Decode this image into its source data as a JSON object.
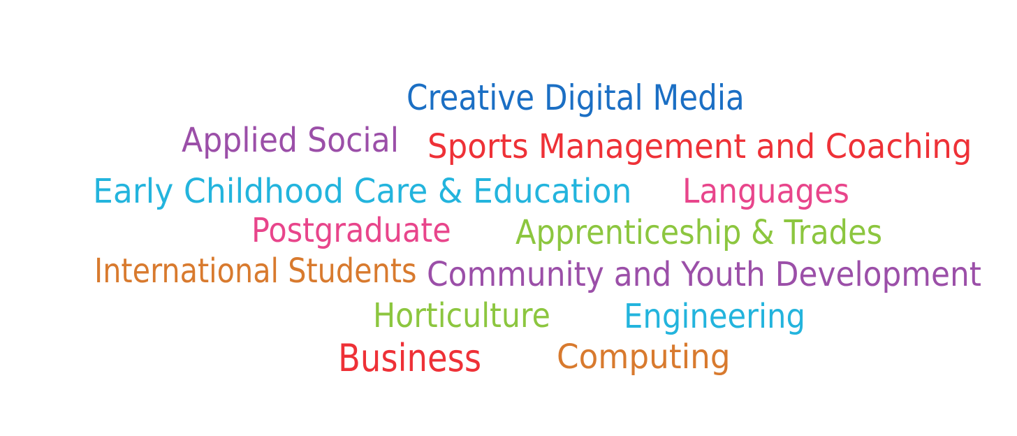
{
  "word_cloud": {
    "words": [
      {
        "text": "Creative Digital Media",
        "color": "#1b6fc4"
      },
      {
        "text": "Applied Social",
        "color": "#9b4fa8"
      },
      {
        "text": "Sports Management and Coaching",
        "color": "#ee3137"
      },
      {
        "text": "Early Childhood Care & Education",
        "color": "#23b4dd"
      },
      {
        "text": "Languages",
        "color": "#e8458b"
      },
      {
        "text": "Postgraduate",
        "color": "#e8458b"
      },
      {
        "text": "Apprenticeship & Trades",
        "color": "#8cc63f"
      },
      {
        "text": "International Students",
        "color": "#d87a2e"
      },
      {
        "text": "Community and Youth Development",
        "color": "#9b4fa8"
      },
      {
        "text": "Horticulture",
        "color": "#8cc63f"
      },
      {
        "text": "Engineering",
        "color": "#23b4dd"
      },
      {
        "text": "Business",
        "color": "#ee3137"
      },
      {
        "text": "Computing",
        "color": "#d87a2e"
      }
    ]
  }
}
